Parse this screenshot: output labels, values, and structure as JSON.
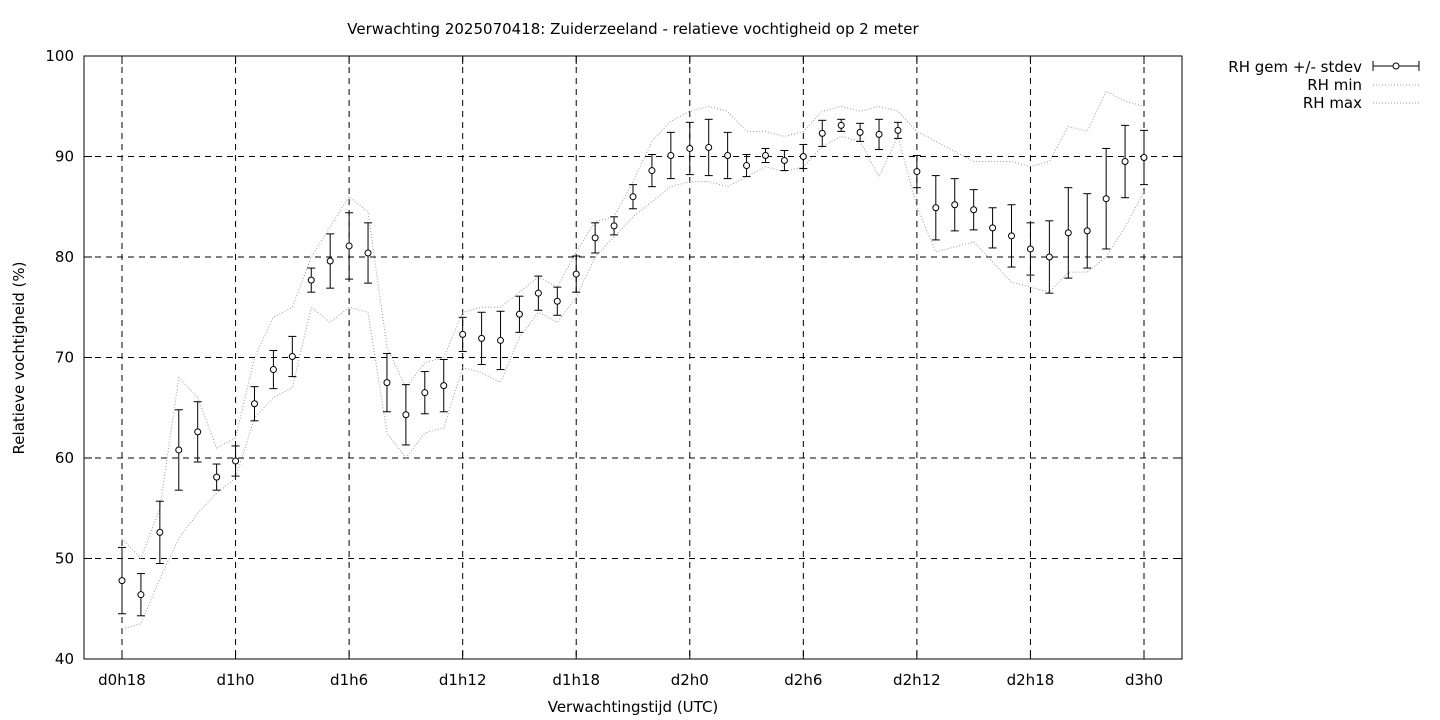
{
  "chart_data": {
    "type": "line",
    "title": "Verwachting 2025070418: Zuiderzeeland - relatieve vochtigheid op 2 meter",
    "xlabel": "Verwachtingstijd (UTC)",
    "ylabel": "Relatieve vochtigheid (%)",
    "xlim": [
      0,
      55
    ],
    "ylim": [
      40,
      100
    ],
    "xticks": [
      {
        "x": 0,
        "label": "d0h18"
      },
      {
        "x": 6,
        "label": "d1h0"
      },
      {
        "x": 12,
        "label": "d1h6"
      },
      {
        "x": 18,
        "label": "d1h12"
      },
      {
        "x": 24,
        "label": "d1h18"
      },
      {
        "x": 30,
        "label": "d2h0"
      },
      {
        "x": 36,
        "label": "d2h6"
      },
      {
        "x": 42,
        "label": "d2h12"
      },
      {
        "x": 48,
        "label": "d2h18"
      },
      {
        "x": 54,
        "label": "d3h0"
      }
    ],
    "yticks": [
      {
        "y": 40,
        "label": "40"
      },
      {
        "y": 50,
        "label": "50"
      },
      {
        "y": 60,
        "label": "60"
      },
      {
        "y": 70,
        "label": "70"
      },
      {
        "y": 80,
        "label": "80"
      },
      {
        "y": 90,
        "label": "90"
      },
      {
        "y": 100,
        "label": "100"
      }
    ],
    "grid": true,
    "legend_position": "top-right",
    "x": [
      0,
      1,
      2,
      3,
      4,
      5,
      6,
      7,
      8,
      9,
      10,
      11,
      12,
      13,
      14,
      15,
      16,
      17,
      18,
      19,
      20,
      21,
      22,
      23,
      24,
      25,
      26,
      27,
      28,
      29,
      30,
      31,
      32,
      33,
      34,
      35,
      36,
      37,
      38,
      39,
      40,
      41,
      42,
      43,
      44,
      45,
      46,
      47,
      48,
      49,
      50,
      51,
      52,
      53,
      54
    ],
    "series": [
      {
        "name": "RH gem +/- stdev",
        "style": "errorbars",
        "values": [
          47.8,
          46.4,
          52.6,
          60.8,
          62.6,
          58.1,
          59.7,
          65.4,
          68.8,
          70.1,
          77.7,
          79.6,
          81.1,
          80.4,
          67.5,
          64.3,
          66.5,
          67.2,
          72.3,
          71.9,
          71.7,
          74.3,
          76.4,
          75.6,
          78.3,
          81.9,
          83.1,
          86.0,
          88.6,
          90.1,
          90.8,
          90.9,
          90.1,
          89.1,
          90.1,
          89.6,
          90.0,
          92.3,
          93.1,
          92.4,
          92.2,
          92.6,
          88.5,
          84.9,
          85.2,
          84.7,
          82.9,
          82.1,
          80.8,
          80.0,
          82.4,
          82.6,
          85.8,
          89.5,
          89.9
        ],
        "stdev": [
          3.3,
          2.1,
          3.1,
          4.0,
          3.0,
          1.3,
          1.5,
          1.7,
          1.9,
          2.0,
          1.2,
          2.7,
          3.3,
          3.0,
          2.9,
          3.0,
          2.1,
          2.6,
          1.7,
          2.6,
          2.9,
          1.8,
          1.7,
          1.4,
          1.8,
          1.5,
          0.9,
          1.2,
          1.6,
          2.3,
          2.6,
          2.8,
          2.3,
          1.1,
          0.7,
          1.0,
          1.2,
          1.3,
          0.6,
          0.9,
          1.5,
          0.8,
          1.6,
          3.2,
          2.6,
          2.0,
          2.0,
          3.1,
          2.6,
          3.6,
          4.5,
          3.7,
          5.0,
          3.6,
          2.7
        ]
      },
      {
        "name": "RH min",
        "style": "dotted",
        "values": [
          43.0,
          43.5,
          48.0,
          52.0,
          54.5,
          56.5,
          58.0,
          64.0,
          66.0,
          67.0,
          75.0,
          73.5,
          75.0,
          74.5,
          62.5,
          60.0,
          62.5,
          63.0,
          69.0,
          68.5,
          67.5,
          72.0,
          74.5,
          73.5,
          76.0,
          80.0,
          82.0,
          84.0,
          85.5,
          87.0,
          87.5,
          87.5,
          87.0,
          88.0,
          89.0,
          88.5,
          89.0,
          91.0,
          92.0,
          91.5,
          88.0,
          92.0,
          85.0,
          80.5,
          81.0,
          81.5,
          79.5,
          77.5,
          77.0,
          76.5,
          78.5,
          78.5,
          80.0,
          83.0,
          86.5
        ]
      },
      {
        "name": "RH max",
        "style": "dotted",
        "values": [
          52.0,
          50.0,
          55.0,
          68.0,
          66.0,
          61.0,
          62.0,
          70.0,
          74.0,
          75.0,
          80.0,
          83.0,
          86.0,
          84.5,
          71.0,
          67.0,
          69.5,
          70.0,
          74.5,
          75.0,
          75.0,
          76.5,
          78.0,
          77.0,
          80.5,
          83.5,
          84.0,
          87.5,
          91.5,
          93.5,
          94.5,
          95.0,
          94.5,
          92.5,
          92.5,
          92.0,
          92.5,
          94.5,
          95.0,
          94.5,
          95.0,
          94.5,
          92.5,
          91.5,
          90.5,
          89.5,
          89.5,
          89.5,
          89.0,
          89.5,
          93.0,
          92.5,
          96.5,
          95.5,
          95.0
        ]
      }
    ]
  }
}
